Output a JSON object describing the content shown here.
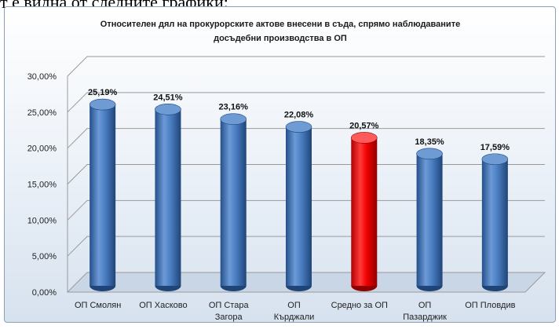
{
  "document_text": "т е видна от следните графики:",
  "colors": {
    "series": "#3f74b8",
    "highlight": "#ff0000",
    "background_top": "#ffffff",
    "background_bottom": "#d7e2ef",
    "grid": "#9a9a9a"
  },
  "chart_data": {
    "type": "bar",
    "title_lines": [
      "Относителен дял на прокурорските актове внесени в съда, спрямо наблюдаваните",
      "досъдебни производства в ОП"
    ],
    "categories": [
      [
        "ОП Смолян"
      ],
      [
        "ОП Хасково"
      ],
      [
        "ОП Стара",
        "Загора"
      ],
      [
        "ОП",
        "Кърджали"
      ],
      [
        "Средно за ОП"
      ],
      [
        "ОП",
        "Пазарджик"
      ],
      [
        "ОП Пловдив"
      ]
    ],
    "values": [
      25.19,
      24.51,
      23.16,
      22.08,
      20.57,
      18.35,
      17.59
    ],
    "value_labels": [
      "25,19%",
      "24,51%",
      "23,16%",
      "22,08%",
      "20,57%",
      "18,35%",
      "17,59%"
    ],
    "highlight_index": 4,
    "yticks": [
      "0,00%",
      "5,00%",
      "10,00%",
      "15,00%",
      "20,00%",
      "25,00%",
      "30,00%"
    ],
    "ylim": [
      0,
      30
    ],
    "grid": true,
    "style": "3d-cylinder"
  }
}
